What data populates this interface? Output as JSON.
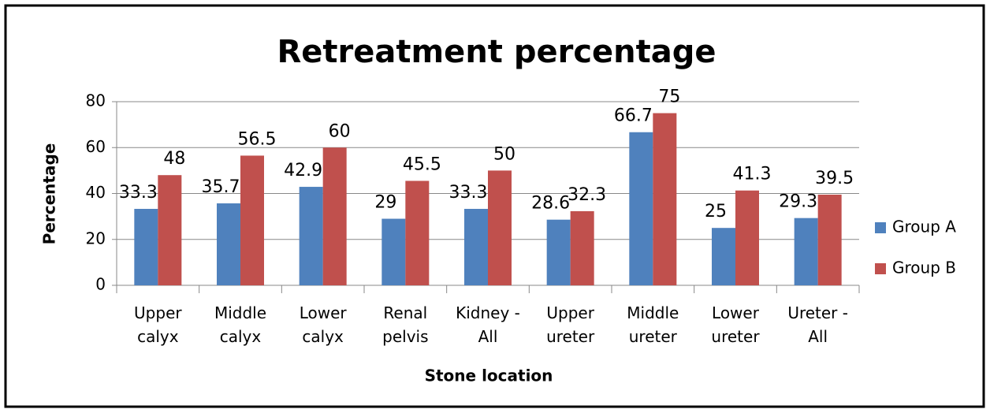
{
  "chart_data": {
    "type": "bar",
    "title": "Retreatment percentage",
    "x_label": "Stone location",
    "y_label": "Percentage",
    "categories": [
      "Upper calyx",
      "Middle calyx",
      "Lower calyx",
      "Renal pelvis",
      "Kidney - All",
      "Upper ureter",
      "Middle ureter",
      "Lower ureter",
      "Ureter - All"
    ],
    "series": [
      {
        "name": "Group A",
        "color": "#4f81bd",
        "values": [
          33.3,
          35.7,
          42.9,
          29,
          33.3,
          28.6,
          66.7,
          25,
          29.3
        ]
      },
      {
        "name": "Group B",
        "color": "#c0504d",
        "values": [
          48,
          56.5,
          60,
          45.5,
          50,
          32.3,
          75,
          41.3,
          39.5
        ]
      }
    ],
    "ylim": [
      0,
      80
    ],
    "yticks": [
      0,
      20,
      40,
      60,
      80
    ],
    "grid": true,
    "legend": "right"
  }
}
